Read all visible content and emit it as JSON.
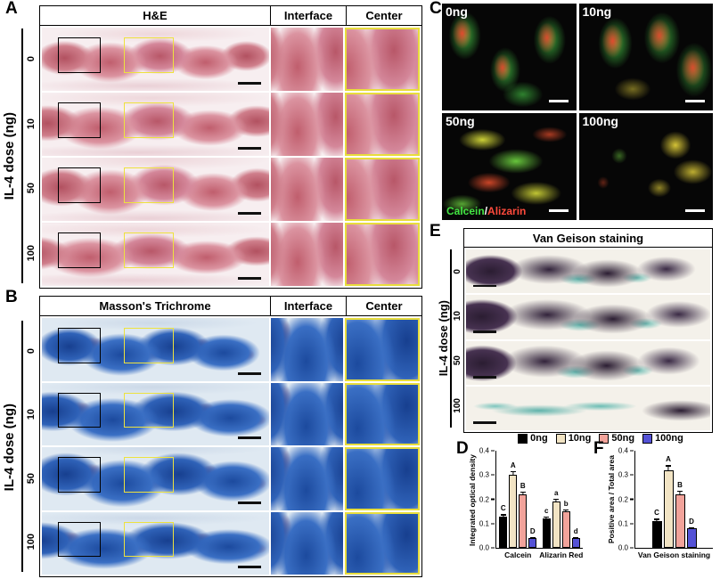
{
  "panels": {
    "A": {
      "letter": "A",
      "axis_label": "IL-4 dose (ng)",
      "col_headers": [
        "H&E",
        "Interface",
        "Center"
      ],
      "row_labels": [
        "0",
        "10",
        "50",
        "100"
      ]
    },
    "B": {
      "letter": "B",
      "axis_label": "IL-4 dose (ng)",
      "col_headers": [
        "Masson's Trichrome",
        "Interface",
        "Center"
      ],
      "row_labels": [
        "0",
        "10",
        "50",
        "100"
      ]
    },
    "C": {
      "letter": "C",
      "image_labels": [
        "0ng",
        "10ng",
        "50ng",
        "100ng"
      ],
      "overlay_legend": {
        "calcein": "Calcein",
        "separator": "/",
        "alizarin": "Alizarin"
      },
      "calcein_color": "#42e342",
      "alizarin_color": "#ff4a3c"
    },
    "D": {
      "letter": "D"
    },
    "E": {
      "letter": "E",
      "header": "Van Geison staining",
      "axis_label": "IL-4 dose (ng)",
      "row_labels": [
        "0",
        "10",
        "50",
        "100"
      ]
    },
    "F": {
      "letter": "F"
    }
  },
  "legend": {
    "items": [
      {
        "label": "0ng",
        "color": "#000000"
      },
      {
        "label": "10ng",
        "color": "#f2e4c4"
      },
      {
        "label": "50ng",
        "color": "#f2a39b"
      },
      {
        "label": "100ng",
        "color": "#5452d6"
      }
    ]
  },
  "chart_data": [
    {
      "id": "chartD",
      "type": "bar",
      "title": "",
      "ylabel": "Integrated optical density",
      "ylim": [
        0,
        0.4
      ],
      "yticks": [
        0,
        0.1,
        0.2,
        0.3,
        0.4
      ],
      "grid": false,
      "categories": [
        "Calcein",
        "Alizarin Red"
      ],
      "series": [
        {
          "name": "0ng",
          "color": "#000000",
          "values": [
            0.13,
            0.12
          ],
          "errors": [
            0.008,
            0.008
          ],
          "labels": [
            "C",
            "c"
          ]
        },
        {
          "name": "10ng",
          "color": "#f2e4c4",
          "values": [
            0.3,
            0.19
          ],
          "errors": [
            0.015,
            0.012
          ],
          "labels": [
            "A",
            "a"
          ]
        },
        {
          "name": "50ng",
          "color": "#f2a39b",
          "values": [
            0.22,
            0.15
          ],
          "errors": [
            0.012,
            0.008
          ],
          "labels": [
            "B",
            "b"
          ]
        },
        {
          "name": "100ng",
          "color": "#5452d6",
          "values": [
            0.04,
            0.04
          ],
          "errors": [
            0.005,
            0.004
          ],
          "labels": [
            "D",
            "d"
          ]
        }
      ]
    },
    {
      "id": "chartF",
      "type": "bar",
      "title": "",
      "ylabel": "Positive area / Total area",
      "ylim": [
        0,
        0.4
      ],
      "yticks": [
        0,
        0.1,
        0.2,
        0.3,
        0.4
      ],
      "grid": false,
      "categories": [
        "Van Geison staining"
      ],
      "series": [
        {
          "name": "0ng",
          "color": "#000000",
          "values": [
            0.11
          ],
          "errors": [
            0.01
          ],
          "labels": [
            "C"
          ]
        },
        {
          "name": "10ng",
          "color": "#f2e4c4",
          "values": [
            0.32
          ],
          "errors": [
            0.02
          ],
          "labels": [
            "A"
          ]
        },
        {
          "name": "50ng",
          "color": "#f2a39b",
          "values": [
            0.22
          ],
          "errors": [
            0.015
          ],
          "labels": [
            "B"
          ]
        },
        {
          "name": "100ng",
          "color": "#5452d6",
          "values": [
            0.08
          ],
          "errors": [
            0.006
          ],
          "labels": [
            "D"
          ]
        }
      ]
    }
  ]
}
